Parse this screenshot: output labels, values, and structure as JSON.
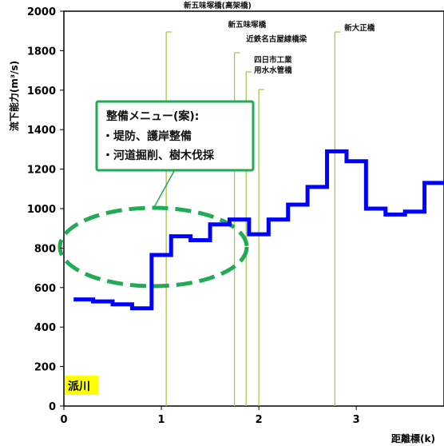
{
  "chart_data": {
    "type": "line",
    "ylabel": "流下能力(m³/s)",
    "xlabel": "距離標(k)",
    "ylim": [
      0,
      2000
    ],
    "yticks": [
      0,
      200,
      400,
      600,
      800,
      1000,
      1200,
      1400,
      1600,
      1800,
      2000
    ],
    "xlim": [
      0,
      3.9
    ],
    "xticks": [
      0,
      1,
      2,
      3
    ],
    "grid": false,
    "series": [
      {
        "color": "#0000ff",
        "step": true,
        "x": [
          0.1,
          0.3,
          0.5,
          0.7,
          0.9,
          1.1,
          1.3,
          1.5,
          1.7,
          1.9,
          2.1,
          2.3,
          2.5,
          2.7,
          2.9,
          3.1,
          3.3,
          3.5,
          3.7,
          3.9
        ],
        "y": [
          540,
          530,
          515,
          495,
          765,
          860,
          840,
          920,
          945,
          870,
          945,
          1020,
          1110,
          1290,
          1240,
          1000,
          970,
          985,
          1130,
          1130
        ]
      }
    ],
    "reference_lines": [
      {
        "x": 1.05,
        "label": "新五味塚橋(高架橋)"
      },
      {
        "x": 1.75,
        "label": "新五味塚橋"
      },
      {
        "x": 1.87,
        "label": "近鉄名古屋線橋梁"
      },
      {
        "x": 2.0,
        "label": "四日市工業用水水管橋"
      },
      {
        "x": 2.78,
        "label": "新大正橋"
      }
    ],
    "annotations": {
      "callout_title": "整備メニュー(案):",
      "callout_lines": [
        "・堤防、護岸整備",
        "・河道掘削、樹木伐採"
      ],
      "river_name": "派川"
    },
    "colors": {
      "series": "#0000ff",
      "ellipse": "#22aa55",
      "callout_border": "#22aa55",
      "ref_line": "#a8c850",
      "river_label_bg": "#ffff00"
    }
  }
}
